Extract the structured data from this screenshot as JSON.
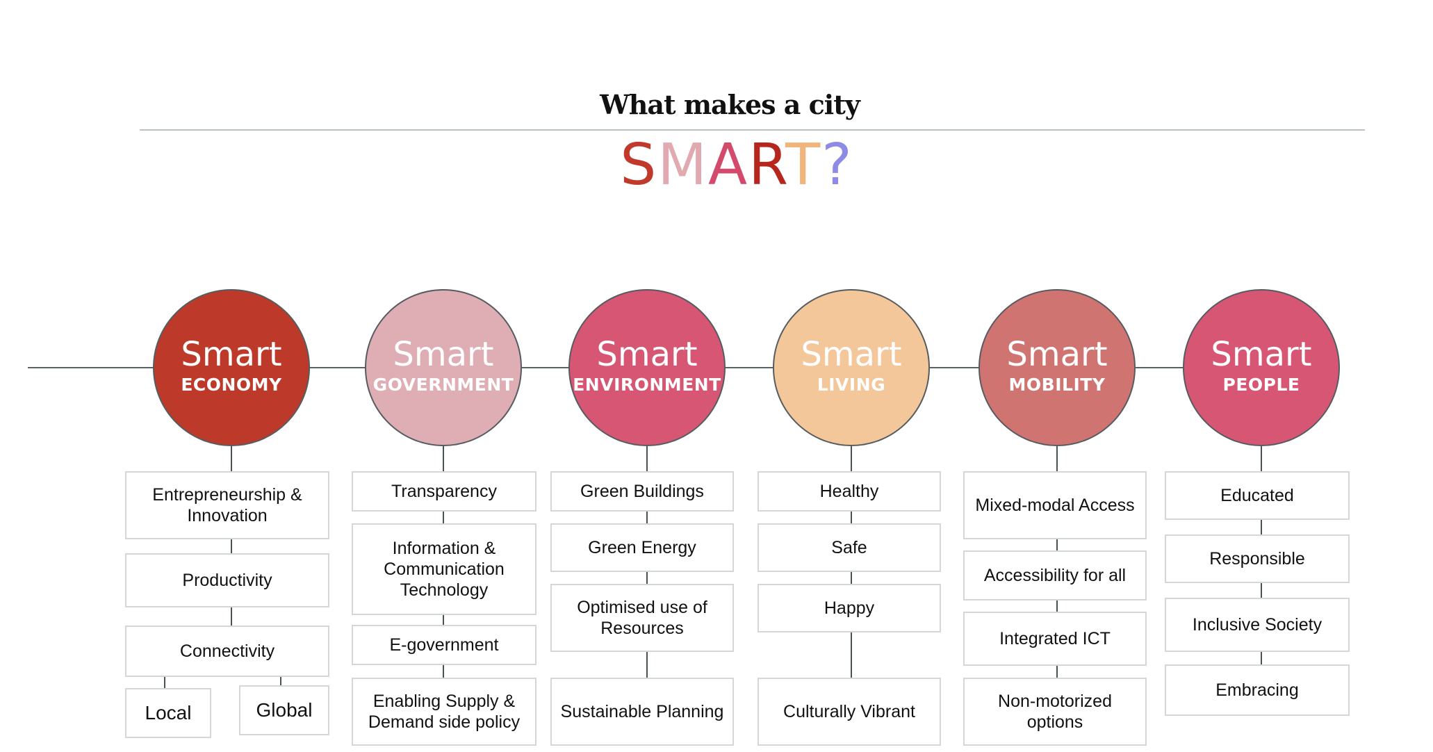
{
  "title": {
    "line1": "What makes a city",
    "smart_letters": [
      {
        "ch": "S",
        "color": "#c0392b"
      },
      {
        "ch": "M",
        "color": "#e1aab0"
      },
      {
        "ch": "A",
        "color": "#d44a6c"
      },
      {
        "ch": "R",
        "color": "#b7261c"
      },
      {
        "ch": "T",
        "color": "#f1b47a"
      },
      {
        "ch": "?",
        "color": "#8e8be6"
      }
    ]
  },
  "pillars": [
    {
      "smart": "Smart",
      "name": "ECONOMY",
      "color": "#bd3a2b",
      "name_color": "#ffffff",
      "items": [
        "Entrepreneurship & Innovation",
        "Productivity",
        "Connectivity"
      ],
      "sub_items": [
        "Local",
        "Global"
      ]
    },
    {
      "smart": "Smart",
      "name": "GOVERNMENT",
      "color": "#dfadb4",
      "name_color": "#ffffff",
      "items": [
        "Transparency",
        "Information & Communication Technology",
        "E-government",
        "Enabling Supply & Demand side policy"
      ]
    },
    {
      "smart": "Smart",
      "name": "ENVIRONMENT",
      "color": "#d65674",
      "name_color": "#ffffff",
      "items": [
        "Green Buildings",
        "Green Energy",
        "Optimised use of Resources",
        "Sustainable Planning"
      ]
    },
    {
      "smart": "Smart",
      "name": "LIVING",
      "color": "#f3c79a",
      "name_color": "#ffffff",
      "items": [
        "Healthy",
        "Safe",
        "Happy",
        "Culturally Vibrant"
      ]
    },
    {
      "smart": "Smart",
      "name": "MOBILITY",
      "color": "#d07472",
      "name_color": "#ffffff",
      "items": [
        "Mixed-modal Access",
        "Accessibility for all",
        "Integrated ICT",
        "Non-motorized options"
      ]
    },
    {
      "smart": "Smart",
      "name": "PEOPLE",
      "color": "#d65674",
      "name_color": "#ffffff",
      "items": [
        "Educated",
        "Responsible",
        "Inclusive Society",
        "Embracing"
      ]
    }
  ]
}
